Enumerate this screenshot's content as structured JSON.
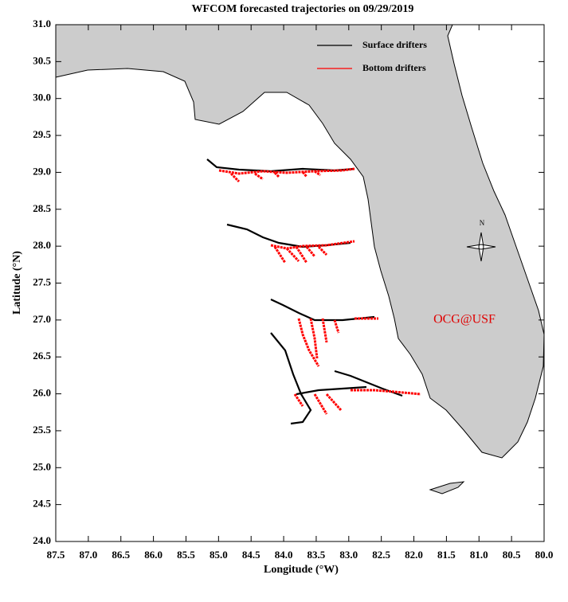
{
  "chart_data": {
    "type": "map",
    "title": "WFCOM forecasted trajectories on 09/29/2019",
    "xlabel": "Longitude (°W)",
    "ylabel": "Latitude (°N)",
    "xlim": [
      87.5,
      80.0
    ],
    "ylim": [
      24.0,
      31.0
    ],
    "xticks": [
      87.5,
      {
        "value": 87.0,
        "label": "87.0"
      },
      86.5,
      {
        "value": 86.0,
        "label": "86.0"
      },
      85.5,
      {
        "value": 85.0,
        "label": "85.0"
      },
      84.5,
      {
        "value": 84.0,
        "label": "84.0"
      },
      83.5,
      {
        "value": 83.0,
        "label": "83.0"
      },
      82.5,
      {
        "value": 82.0,
        "label": "82.0"
      },
      81.5,
      {
        "value": 81.0,
        "label": "81.0"
      },
      80.5,
      {
        "value": 80.0,
        "label": "80.0"
      }
    ],
    "yticks": [
      {
        "value": 24.0,
        "label": "24.0"
      },
      24.5,
      {
        "value": 25.0,
        "label": "25.0"
      },
      25.5,
      {
        "value": 26.0,
        "label": "26.0"
      },
      26.5,
      {
        "value": 27.0,
        "label": "27.0"
      },
      27.5,
      {
        "value": 28.0,
        "label": "28.0"
      },
      28.5,
      {
        "value": 29.0,
        "label": "29.0"
      },
      29.5,
      {
        "value": 30.0,
        "label": "30.0"
      },
      30.5,
      {
        "value": 31.0,
        "label": "31.0"
      }
    ],
    "series": [
      {
        "name": "Surface drifters",
        "color": "#000000"
      },
      {
        "name": "Bottom drifters",
        "color": "#ff0000"
      }
    ],
    "legend": "upper right",
    "annotation": "OCG@USF",
    "compass": "N"
  }
}
